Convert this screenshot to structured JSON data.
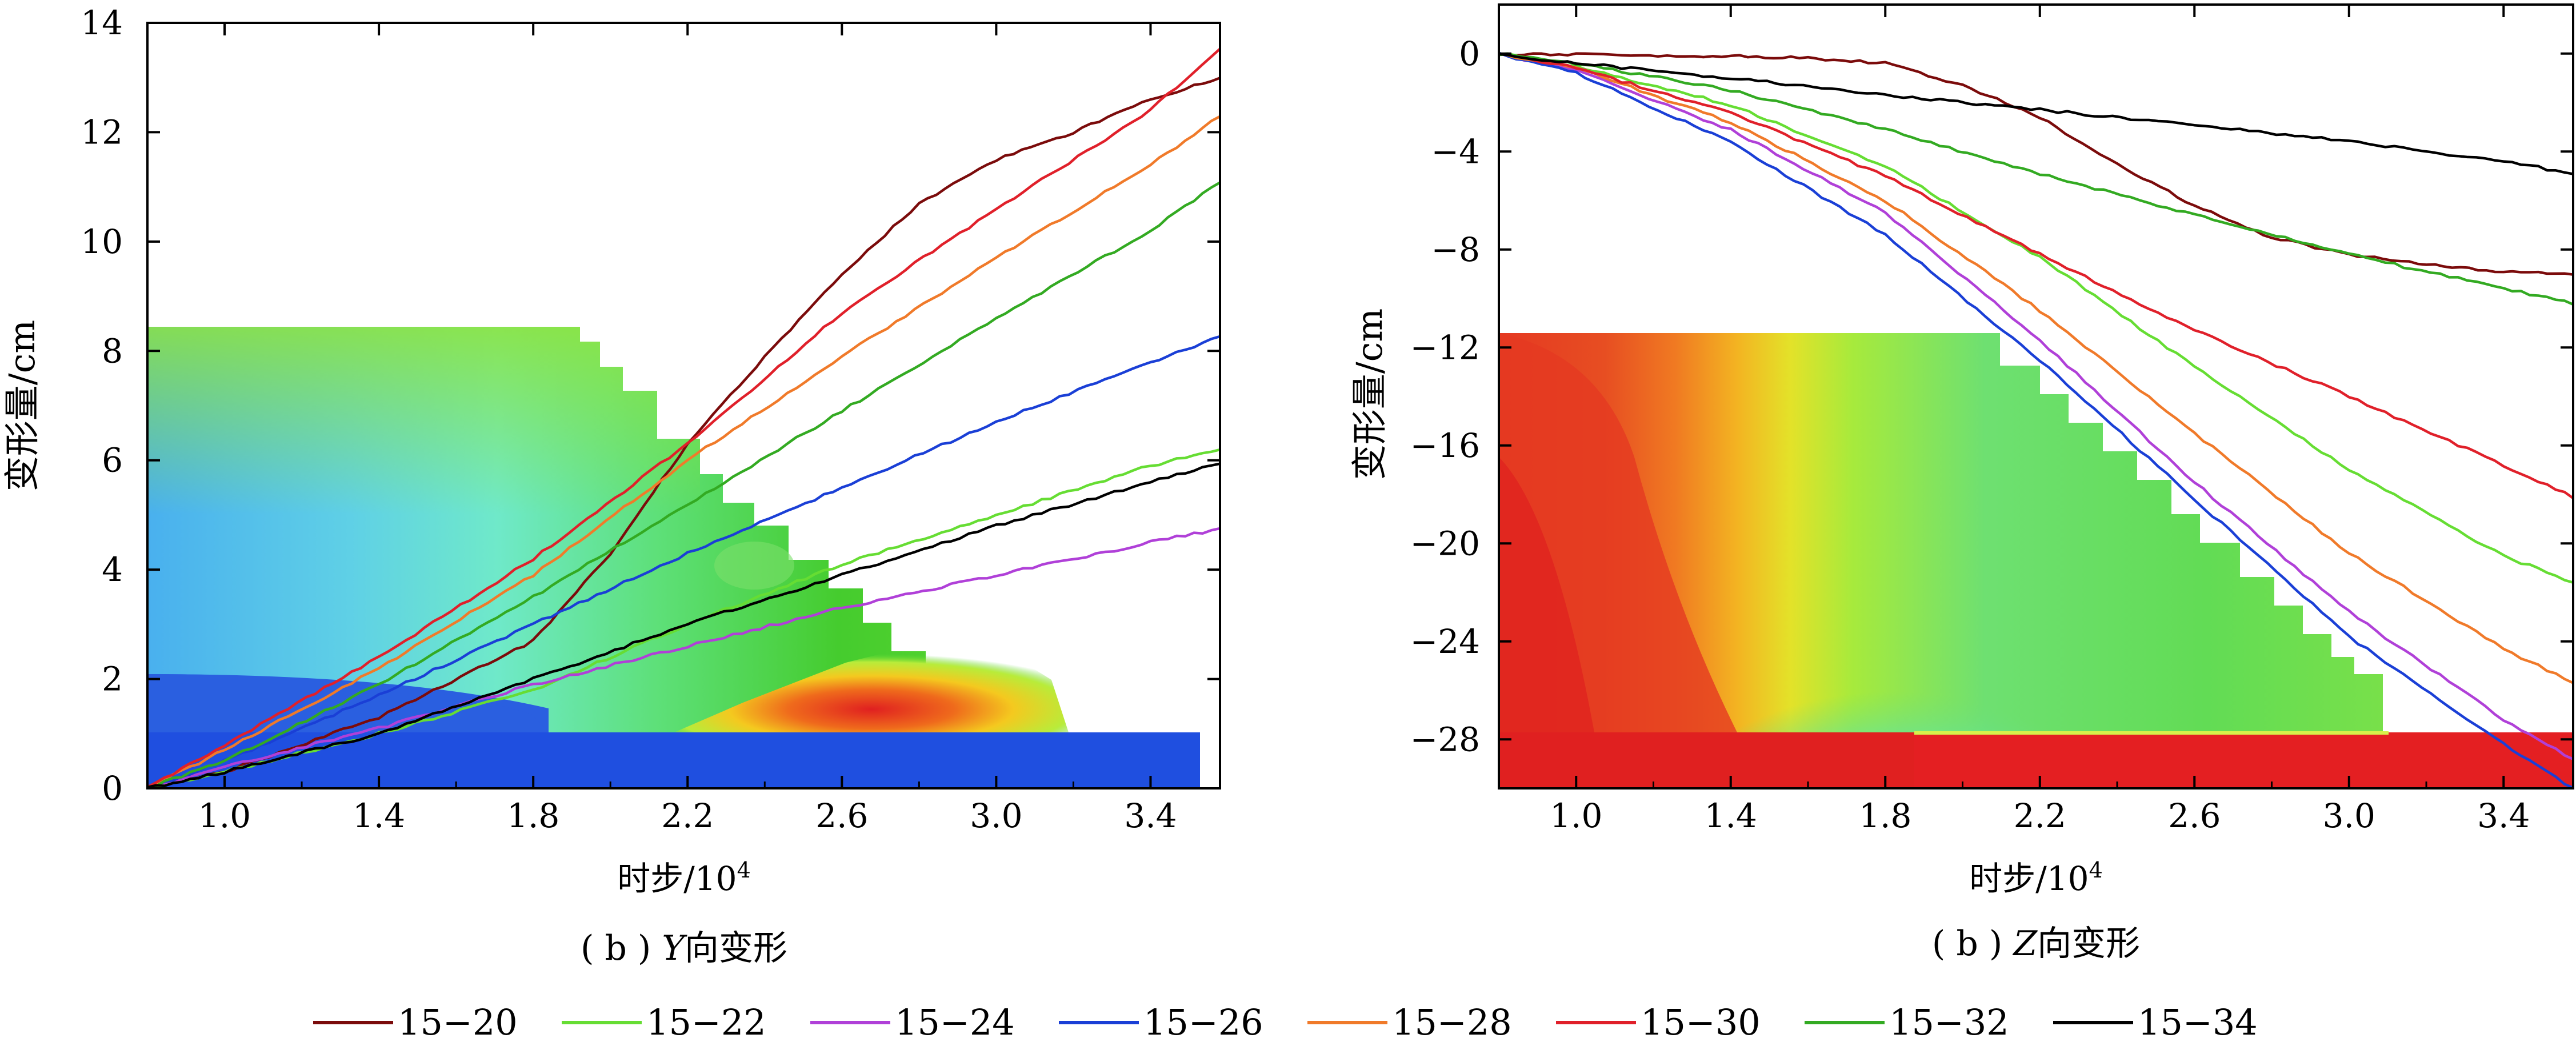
{
  "chart_data": [
    {
      "type": "line",
      "title": "( b ) Y向变形",
      "title_parts": {
        "prefix": "( b ) ",
        "italic": "Y",
        "suffix": "向变形"
      },
      "xlabel": "时步/10⁴",
      "xlabel_parts": {
        "base": "时步/10",
        "sup": "4"
      },
      "ylabel": "变形量/cm",
      "xlim": [
        0.8,
        3.58
      ],
      "ylim": [
        0,
        14
      ],
      "xticks": [
        1.0,
        1.4,
        1.8,
        2.2,
        2.6,
        3.0,
        3.4
      ],
      "xtick_labels": [
        "1.0",
        "1.4",
        "1.8",
        "2.2",
        "2.6",
        "3.0",
        "3.4"
      ],
      "yticks": [
        0,
        2,
        4,
        6,
        8,
        10,
        12,
        14
      ],
      "ytick_labels": [
        "0",
        "2",
        "4",
        "6",
        "8",
        "10",
        "12",
        "14"
      ],
      "grid": false,
      "background": "contour-image",
      "series": [
        {
          "name": "15−20",
          "color": "#7b0b0b",
          "x": [
            0.8,
            1.0,
            1.4,
            1.8,
            2.0,
            2.2,
            2.4,
            2.6,
            2.8,
            3.0,
            3.2,
            3.4,
            3.58
          ],
          "y": [
            0,
            0.3,
            1.3,
            2.7,
            4.3,
            6.3,
            7.9,
            9.4,
            10.7,
            11.5,
            12.0,
            12.6,
            13.0
          ]
        },
        {
          "name": "15−22",
          "color": "#66dd33",
          "x": [
            0.8,
            1.0,
            1.4,
            1.8,
            2.2,
            2.6,
            3.0,
            3.4,
            3.58
          ],
          "y": [
            0,
            0.3,
            1.0,
            1.8,
            3.0,
            4.1,
            5.0,
            5.9,
            6.2
          ]
        },
        {
          "name": "15−24",
          "color": "#b040d8",
          "x": [
            0.8,
            1.0,
            1.4,
            1.8,
            2.2,
            2.6,
            3.0,
            3.4,
            3.58
          ],
          "y": [
            0,
            0.4,
            1.1,
            1.9,
            2.6,
            3.3,
            3.9,
            4.5,
            4.75
          ]
        },
        {
          "name": "15−26",
          "color": "#1a3fd6",
          "x": [
            0.8,
            1.0,
            1.4,
            1.8,
            2.2,
            2.6,
            3.0,
            3.4,
            3.58
          ],
          "y": [
            0,
            0.5,
            1.7,
            3.0,
            4.3,
            5.5,
            6.7,
            7.8,
            8.25
          ]
        },
        {
          "name": "15−28",
          "color": "#f07a2a",
          "x": [
            0.8,
            1.0,
            1.4,
            1.8,
            2.2,
            2.6,
            3.0,
            3.4,
            3.58
          ],
          "y": [
            0,
            0.7,
            2.2,
            3.9,
            6.0,
            7.9,
            9.7,
            11.4,
            12.3
          ]
        },
        {
          "name": "15−30",
          "color": "#e0202a",
          "x": [
            0.8,
            1.0,
            1.4,
            1.8,
            2.2,
            2.6,
            3.0,
            3.4,
            3.58
          ],
          "y": [
            0,
            0.8,
            2.4,
            4.2,
            6.3,
            8.7,
            10.6,
            12.4,
            13.55
          ]
        },
        {
          "name": "15−32",
          "color": "#33aa22",
          "x": [
            0.8,
            1.0,
            1.4,
            1.8,
            2.2,
            2.6,
            3.0,
            3.4,
            3.58
          ],
          "y": [
            0,
            0.5,
            1.9,
            3.5,
            5.2,
            6.9,
            8.6,
            10.2,
            11.1
          ]
        },
        {
          "name": "15−34",
          "color": "#000000",
          "x": [
            0.8,
            1.0,
            1.4,
            1.8,
            2.2,
            2.6,
            3.0,
            3.4,
            3.58
          ],
          "y": [
            0,
            0.3,
            1.0,
            2.0,
            3.0,
            3.9,
            4.8,
            5.6,
            5.95
          ]
        }
      ]
    },
    {
      "type": "line",
      "title": "( b ) Z向变形",
      "title_parts": {
        "prefix": "( b ) ",
        "italic": "Z",
        "suffix": "向变形"
      },
      "xlabel": "时步/10⁴",
      "xlabel_parts": {
        "base": "时步/10",
        "sup": "4"
      },
      "ylabel": "变形量/cm",
      "xlim": [
        0.8,
        3.58
      ],
      "ylim": [
        -30,
        2
      ],
      "xticks": [
        1.0,
        1.4,
        1.8,
        2.2,
        2.6,
        3.0,
        3.4
      ],
      "xtick_labels": [
        "1.0",
        "1.4",
        "1.8",
        "2.2",
        "2.6",
        "3.0",
        "3.4"
      ],
      "yticks": [
        0,
        -4,
        -8,
        -12,
        -16,
        -20,
        -24,
        -28
      ],
      "ytick_labels": [
        "0",
        "−4",
        "−8",
        "−12",
        "−16",
        "−20",
        "−24",
        "−28"
      ],
      "grid": false,
      "background": "contour-image",
      "series": [
        {
          "name": "15−20",
          "color": "#7b0b0b",
          "x": [
            0.8,
            1.0,
            1.4,
            1.6,
            1.8,
            2.0,
            2.2,
            2.4,
            2.6,
            2.8,
            3.0,
            3.2,
            3.4,
            3.58
          ],
          "y": [
            0,
            -0.05,
            -0.1,
            -0.2,
            -0.4,
            -1.3,
            -2.6,
            -4.5,
            -6.2,
            -7.5,
            -8.2,
            -8.6,
            -8.9,
            -9.0
          ]
        },
        {
          "name": "15−22",
          "color": "#66dd33",
          "x": [
            0.8,
            1.0,
            1.4,
            1.8,
            2.2,
            2.6,
            3.0,
            3.4,
            3.58
          ],
          "y": [
            0,
            -0.5,
            -2.1,
            -4.6,
            -8.3,
            -12.8,
            -17.0,
            -20.5,
            -21.6
          ]
        },
        {
          "name": "15−24",
          "color": "#b040d8",
          "x": [
            0.8,
            1.0,
            1.4,
            1.8,
            2.2,
            2.6,
            3.0,
            3.4,
            3.58
          ],
          "y": [
            0,
            -0.7,
            -3.1,
            -6.5,
            -11.7,
            -17.5,
            -22.8,
            -27.2,
            -28.8
          ]
        },
        {
          "name": "15−26",
          "color": "#1a3fd6",
          "x": [
            0.8,
            1.0,
            1.4,
            1.8,
            2.2,
            2.6,
            3.0,
            3.4,
            3.58
          ],
          "y": [
            0,
            -0.8,
            -3.6,
            -7.4,
            -12.5,
            -18.2,
            -23.8,
            -28.2,
            -30.0
          ]
        },
        {
          "name": "15−28",
          "color": "#f07a2a",
          "x": [
            0.8,
            1.0,
            1.4,
            1.8,
            2.2,
            2.6,
            3.0,
            3.4,
            3.58
          ],
          "y": [
            0,
            -0.6,
            -2.8,
            -6.0,
            -10.5,
            -15.5,
            -20.4,
            -24.3,
            -25.7
          ]
        },
        {
          "name": "15−30",
          "color": "#e0202a",
          "x": [
            0.8,
            1.0,
            1.4,
            1.8,
            2.2,
            2.6,
            3.0,
            3.4,
            3.58
          ],
          "y": [
            0,
            -0.6,
            -2.4,
            -5.0,
            -8.2,
            -11.3,
            -14.0,
            -16.8,
            -18.1
          ]
        },
        {
          "name": "15−32",
          "color": "#33aa22",
          "x": [
            0.8,
            1.0,
            1.4,
            1.8,
            2.2,
            2.6,
            3.0,
            3.4,
            3.58
          ],
          "y": [
            0,
            -0.4,
            -1.5,
            -3.1,
            -4.9,
            -6.6,
            -8.2,
            -9.6,
            -10.2
          ]
        },
        {
          "name": "15−34",
          "color": "#000000",
          "x": [
            0.8,
            1.0,
            1.4,
            1.8,
            2.2,
            2.6,
            3.0,
            3.4,
            3.58
          ],
          "y": [
            0,
            -0.4,
            -1.0,
            -1.7,
            -2.3,
            -2.9,
            -3.6,
            -4.4,
            -4.9
          ]
        }
      ]
    }
  ],
  "legend": {
    "placement": "bottom",
    "items": [
      {
        "label": "15−20",
        "color": "#7b0b0b"
      },
      {
        "label": "15−22",
        "color": "#66dd33"
      },
      {
        "label": "15−24",
        "color": "#b040d8"
      },
      {
        "label": "15−26",
        "color": "#1a3fd6"
      },
      {
        "label": "15−28",
        "color": "#f07a2a"
      },
      {
        "label": "15−30",
        "color": "#e0202a"
      },
      {
        "label": "15−32",
        "color": "#33aa22"
      },
      {
        "label": "15−34",
        "color": "#000000"
      }
    ]
  }
}
